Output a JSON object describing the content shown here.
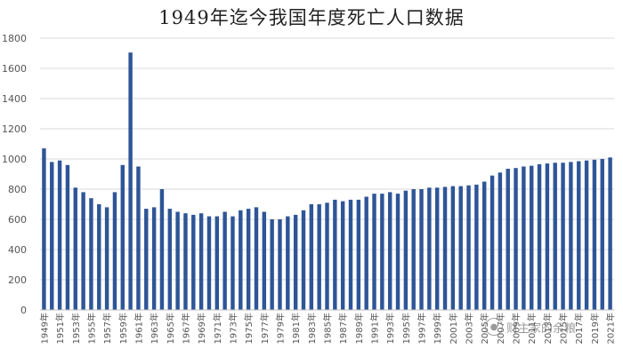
{
  "chart_data": {
    "type": "bar",
    "title": "1949年迄今我国年度死亡人口数据",
    "xlabel": "",
    "ylabel": "",
    "ylim": [
      0,
      1800
    ],
    "yticks": [
      0,
      200,
      400,
      600,
      800,
      1000,
      1200,
      1400,
      1600,
      1800
    ],
    "grid": true,
    "bar_color": "#2E5597",
    "categories": [
      "1949年",
      "1950年",
      "1951年",
      "1952年",
      "1953年",
      "1954年",
      "1955年",
      "1956年",
      "1957年",
      "1958年",
      "1959年",
      "1960年",
      "1961年",
      "1962年",
      "1963年",
      "1964年",
      "1965年",
      "1966年",
      "1967年",
      "1968年",
      "1969年",
      "1970年",
      "1971年",
      "1972年",
      "1973年",
      "1974年",
      "1975年",
      "1976年",
      "1977年",
      "1978年",
      "1979年",
      "1980年",
      "1981年",
      "1982年",
      "1983年",
      "1984年",
      "1985年",
      "1986年",
      "1987年",
      "1988年",
      "1989年",
      "1990年",
      "1991年",
      "1992年",
      "1993年",
      "1994年",
      "1995年",
      "1996年",
      "1997年",
      "1998年",
      "1999年",
      "2000年",
      "2001年",
      "2002年",
      "2003年",
      "2004年",
      "2005年",
      "2006年",
      "2007年",
      "2008年",
      "2009年",
      "2010年",
      "2011年",
      "2012年",
      "2013年",
      "2014年",
      "2015年",
      "2016年",
      "2017年",
      "2018年",
      "2019年",
      "2020年",
      "2021年"
    ],
    "tick_labels": [
      "1949年",
      "1951年",
      "1953年",
      "1955年",
      "1957年",
      "1959年",
      "1961年",
      "1963年",
      "1965年",
      "1967年",
      "1969年",
      "1971年",
      "1973年",
      "1975年",
      "1977年",
      "1979年",
      "1981年",
      "1983年",
      "1985年",
      "1987年",
      "1989年",
      "1991年",
      "1993年",
      "1995年",
      "1997年",
      "1999年",
      "2001年",
      "2003年",
      "2005年",
      "2007年",
      "2009年",
      "2011年",
      "2013年",
      "2015年",
      "2017年",
      "2019年",
      "2021年"
    ],
    "values": [
      1070,
      980,
      990,
      960,
      810,
      780,
      740,
      700,
      680,
      780,
      960,
      1705,
      950,
      670,
      680,
      800,
      670,
      650,
      640,
      630,
      640,
      620,
      620,
      650,
      620,
      660,
      670,
      680,
      650,
      600,
      600,
      620,
      630,
      660,
      700,
      700,
      710,
      730,
      720,
      730,
      730,
      750,
      770,
      770,
      780,
      770,
      790,
      800,
      800,
      810,
      810,
      815,
      820,
      820,
      825,
      830,
      850,
      890,
      910,
      935,
      940,
      950,
      955,
      965,
      970,
      975,
      975,
      980,
      985,
      990,
      995,
      1000,
      1010
    ]
  },
  "watermark": {
    "icon": "wechat-icon",
    "text": "财主家的余粮"
  }
}
